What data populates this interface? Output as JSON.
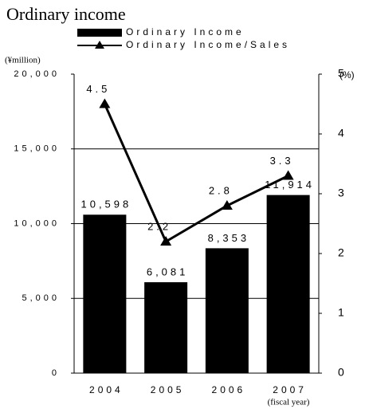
{
  "chart_data": {
    "type": "bar_line",
    "title": "Ordinary income",
    "ylabel": "(¥million)",
    "y2label": "(%)",
    "xlabel": "(fiscal year)",
    "categories": [
      "2004",
      "2005",
      "2006",
      "2007"
    ],
    "series": [
      {
        "name": "Ordinary Income",
        "color": "#000000",
        "type": "bar",
        "values": [
          10598,
          6081,
          8353,
          11914
        ],
        "value_labels": [
          "10,598",
          "6,081",
          "8,353",
          "11,914"
        ]
      },
      {
        "name": "Ordinary Income/Sales",
        "color": "#000000",
        "type": "line",
        "axis": "y2",
        "values": [
          4.5,
          2.2,
          2.8,
          3.3
        ]
      }
    ],
    "ylim": [
      0,
      20000
    ],
    "yticks": [
      0,
      {
        "value": 5000,
        "label": "5,000"
      },
      {
        "value": 10000,
        "label": "10,000"
      },
      {
        "value": 15000,
        "label": "15,000"
      },
      {
        "value": 20000,
        "label": "20,000"
      }
    ],
    "y2lim": [
      0,
      5
    ],
    "y2ticks": [
      0,
      1,
      2,
      3,
      4,
      5
    ],
    "grid": true
  }
}
